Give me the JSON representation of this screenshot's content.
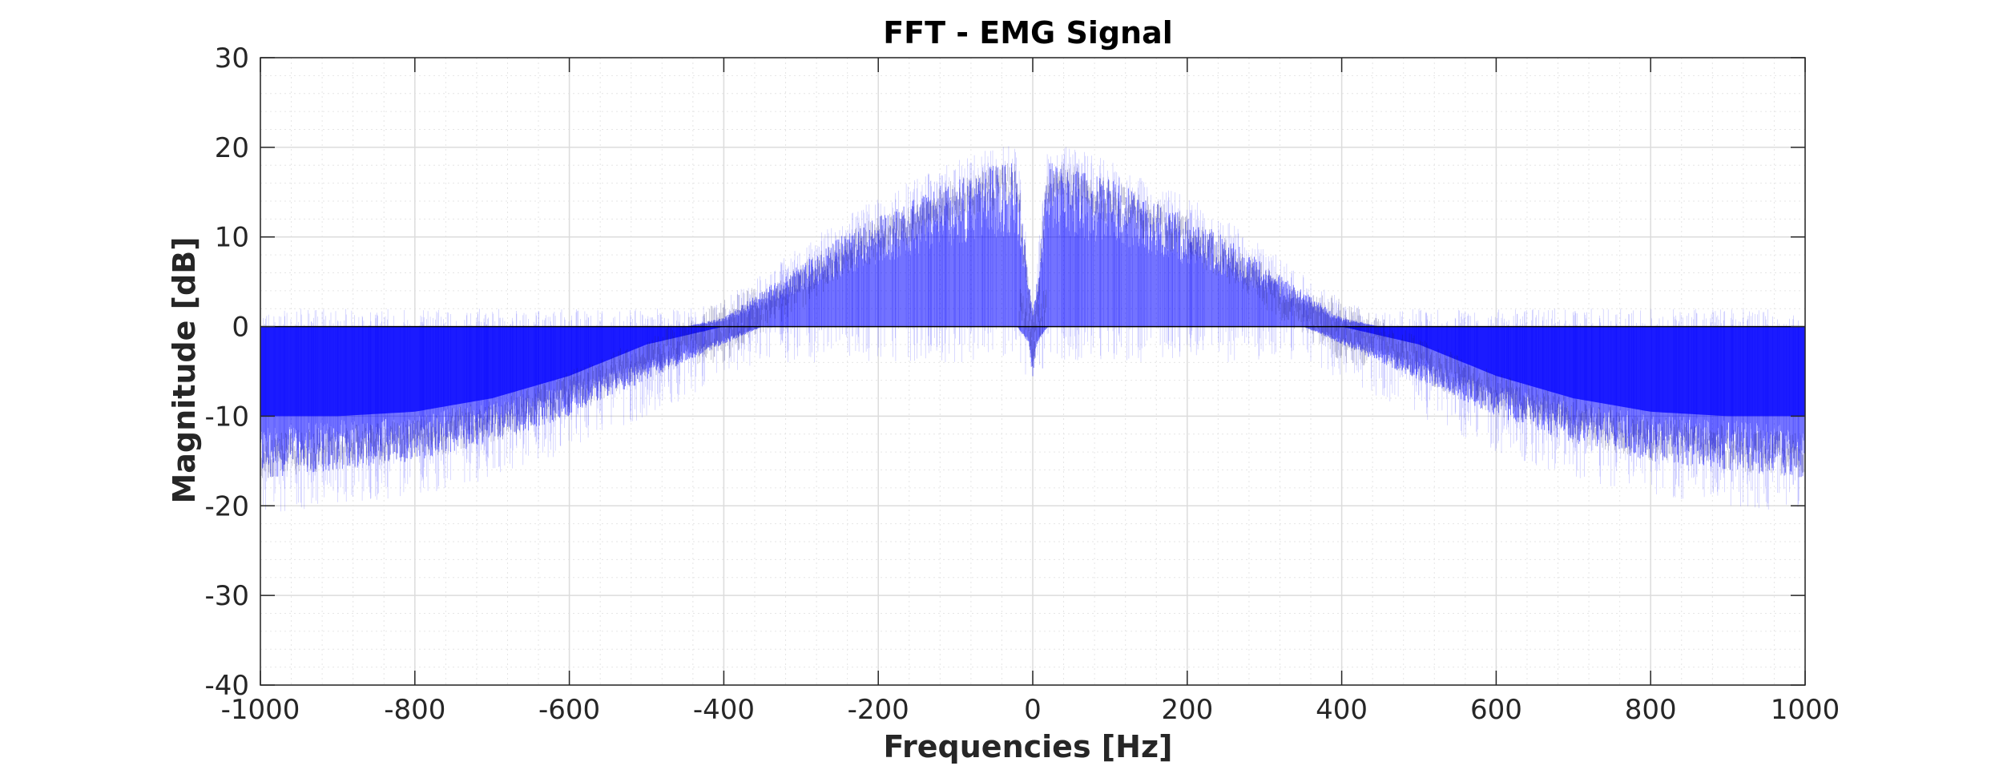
{
  "chart_data": {
    "type": "area",
    "title": "FFT - EMG Signal",
    "xlabel": "Frequencies [Hz]",
    "ylabel": "Magnitude [dB]",
    "xlim": [
      -1000,
      1000
    ],
    "ylim": [
      -40,
      30
    ],
    "xticks": [
      -1000,
      -800,
      -600,
      -400,
      -200,
      0,
      200,
      400,
      600,
      800,
      1000
    ],
    "yticks": [
      -40,
      -30,
      -20,
      -10,
      0,
      10,
      20,
      30
    ],
    "grid": true,
    "minor_grid": true,
    "baseline": 0,
    "series": [
      {
        "color": "#0000ff",
        "fill_color": "#3333ff",
        "x": [
          -1000,
          -900,
          -800,
          -700,
          -600,
          -500,
          -450,
          -400,
          -350,
          -300,
          -250,
          -200,
          -150,
          -100,
          -50,
          -20,
          -5,
          0,
          5,
          20,
          50,
          100,
          150,
          200,
          250,
          300,
          350,
          400,
          450,
          500,
          600,
          700,
          800,
          900,
          1000
        ],
        "y_upper": [
          0,
          0,
          0,
          0,
          0,
          0,
          0,
          1,
          4,
          7,
          10,
          12.5,
          14.5,
          16.5,
          18,
          18.5,
          5,
          2,
          5,
          18.5,
          18,
          16.5,
          14.5,
          12.5,
          10,
          7,
          4,
          1,
          0,
          0,
          0,
          0,
          0,
          0,
          0
        ],
        "y_lower": [
          -17,
          -16,
          -15,
          -13,
          -10,
          -6,
          -4,
          -2,
          0,
          0,
          0,
          0,
          0,
          0,
          0,
          0,
          -2,
          -6,
          -2,
          0,
          0,
          0,
          0,
          0,
          0,
          0,
          0,
          -2,
          -4,
          -6,
          -10,
          -13,
          -15,
          -16,
          -17
        ],
        "fill_bottom": [
          -10,
          -10,
          -9.5,
          -8,
          -5.5,
          -2,
          -1,
          0,
          0,
          0,
          0,
          0,
          0,
          0,
          0,
          0,
          0,
          0,
          0,
          0,
          0,
          0,
          0,
          0,
          0,
          0,
          0,
          0,
          -1,
          -2,
          -5.5,
          -8,
          -9.5,
          -10,
          -10
        ]
      }
    ]
  }
}
